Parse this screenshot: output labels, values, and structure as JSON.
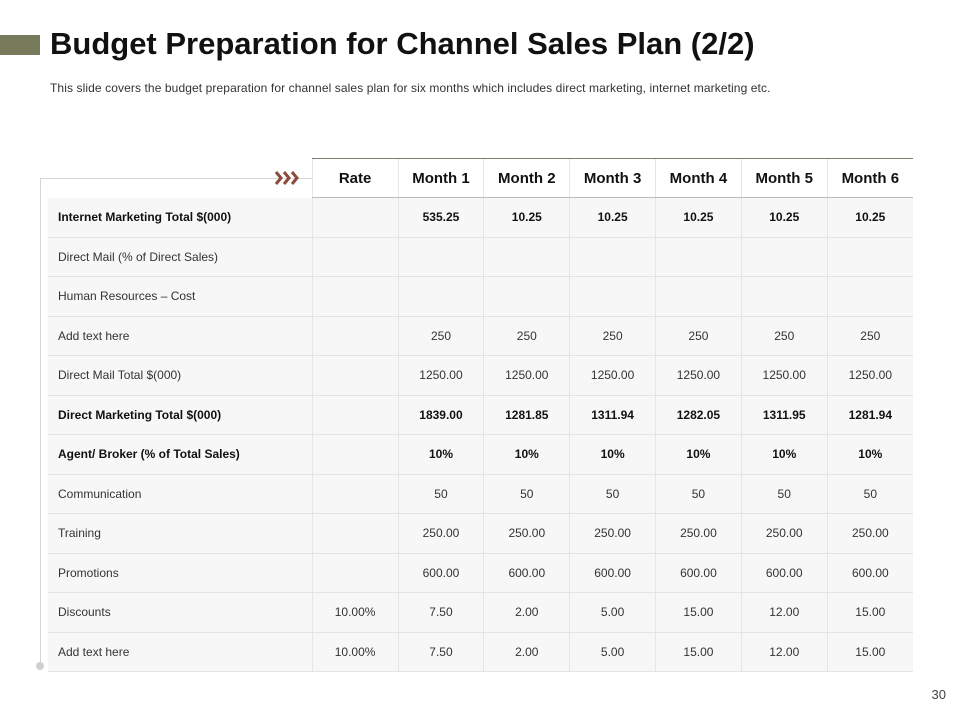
{
  "slide": {
    "title": "Budget Preparation for Channel Sales Plan (2/2)",
    "subtitle": "This slide covers the budget preparation for channel sales plan for six months which includes direct marketing, internet marketing etc.",
    "page_number": "30",
    "accent_color": "#777a5b",
    "chevron_color": "#8b4a3a"
  },
  "table": {
    "headers": [
      "Rate",
      "Month 1",
      "Month 2",
      "Month 3",
      "Month 4",
      "Month 5",
      "Month 6"
    ],
    "rows": [
      {
        "label": "Internet Marketing Total $(000)",
        "bold": true,
        "cells": [
          "",
          "535.25",
          "10.25",
          "10.25",
          "10.25",
          "10.25",
          "10.25"
        ]
      },
      {
        "label": "Direct Mail (% of Direct Sales)",
        "bold": false,
        "cells": [
          "",
          "",
          "",
          "",
          "",
          "",
          ""
        ]
      },
      {
        "label": "Human Resources – Cost",
        "bold": false,
        "cells": [
          "",
          "",
          "",
          "",
          "",
          "",
          ""
        ]
      },
      {
        "label": "Add text here",
        "bold": false,
        "cells": [
          "",
          "250",
          "250",
          "250",
          "250",
          "250",
          "250"
        ]
      },
      {
        "label": "Direct Mail Total $(000)",
        "bold": false,
        "cells": [
          "",
          "1250.00",
          "1250.00",
          "1250.00",
          "1250.00",
          "1250.00",
          "1250.00"
        ]
      },
      {
        "label": "Direct Marketing Total $(000)",
        "bold": true,
        "cells": [
          "",
          "1839.00",
          "1281.85",
          "1311.94",
          "1282.05",
          "1311.95",
          "1281.94"
        ]
      },
      {
        "label": "Agent/ Broker (% of Total Sales)",
        "bold": true,
        "cells": [
          "",
          "10%",
          "10%",
          "10%",
          "10%",
          "10%",
          "10%"
        ]
      },
      {
        "label": "Communication",
        "bold": false,
        "cells": [
          "",
          "50",
          "50",
          "50",
          "50",
          "50",
          "50"
        ]
      },
      {
        "label": "Training",
        "bold": false,
        "cells": [
          "",
          "250.00",
          "250.00",
          "250.00",
          "250.00",
          "250.00",
          "250.00"
        ]
      },
      {
        "label": "Promotions",
        "bold": false,
        "cells": [
          "",
          "600.00",
          "600.00",
          "600.00",
          "600.00",
          "600.00",
          "600.00"
        ]
      },
      {
        "label": "Discounts",
        "bold": false,
        "cells": [
          "10.00%",
          "7.50",
          "2.00",
          "5.00",
          "15.00",
          "12.00",
          "15.00"
        ]
      },
      {
        "label": "Add text here",
        "bold": false,
        "cells": [
          "10.00%",
          "7.50",
          "2.00",
          "5.00",
          "15.00",
          "12.00",
          "15.00"
        ]
      }
    ]
  }
}
